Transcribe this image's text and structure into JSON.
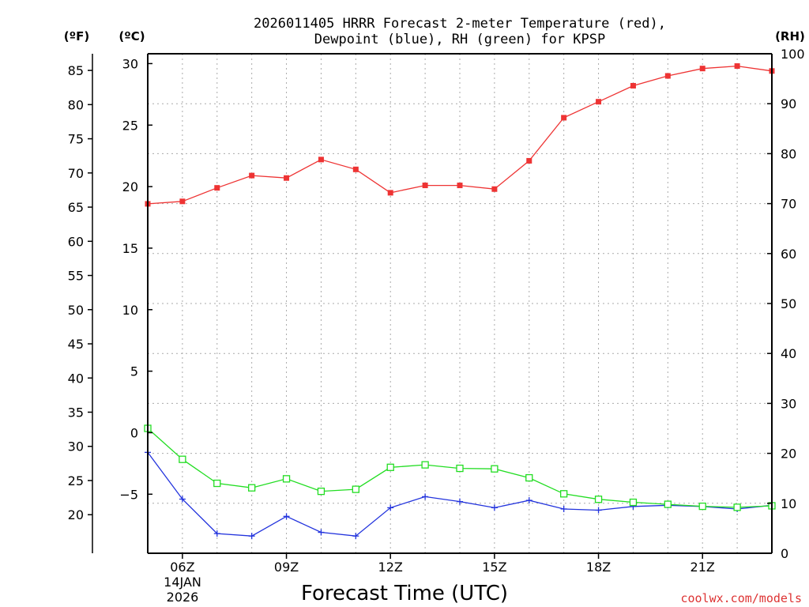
{
  "chart_data": {
    "type": "line",
    "title_line1": "2026011405 HRRR Forecast 2-meter Temperature (red),",
    "title_line2": "Dewpoint (blue), RH (green) for KPSP",
    "xlabel": "Forecast Time (UTC)",
    "left_outer_axis_label": "(ºF)",
    "left_inner_axis_label": "(ºC)",
    "right_axis_label": "(RH)",
    "x_hours": [
      5,
      6,
      7,
      8,
      9,
      10,
      11,
      12,
      13,
      14,
      15,
      16,
      17,
      18,
      19,
      20,
      21,
      22,
      23
    ],
    "x_ticks": [
      {
        "hour": 6,
        "label": "06Z"
      },
      {
        "hour": 9,
        "label": "09Z"
      },
      {
        "hour": 12,
        "label": "12Z"
      },
      {
        "hour": 15,
        "label": "15Z"
      },
      {
        "hour": 18,
        "label": "18Z"
      },
      {
        "hour": 21,
        "label": "21Z"
      }
    ],
    "date_label_line1": "14JAN",
    "date_label_line2": "2026",
    "xlim": [
      5,
      23
    ],
    "celsius_ylim": [
      -9.8,
      30.8
    ],
    "celsius_ticks": [
      30,
      25,
      20,
      15,
      10,
      5,
      0,
      -5
    ],
    "fahrenheit_ticks": [
      85,
      80,
      75,
      70,
      65,
      60,
      55,
      50,
      45,
      40,
      35,
      30,
      25,
      20
    ],
    "rh_ylim": [
      0,
      100
    ],
    "rh_ticks": [
      100,
      90,
      80,
      70,
      60,
      50,
      40,
      30,
      20,
      10,
      0
    ],
    "series": [
      {
        "name": "2-meter Temperature",
        "color": "#ee3333",
        "axis": "celsius",
        "marker": "filled-square",
        "values": [
          18.6,
          18.8,
          19.9,
          20.9,
          20.7,
          22.2,
          21.4,
          19.5,
          20.1,
          20.1,
          19.8,
          22.1,
          25.6,
          26.9,
          28.2,
          29.0,
          29.6,
          29.8,
          29.4
        ]
      },
      {
        "name": "Dewpoint",
        "color": "#2233dd",
        "axis": "celsius",
        "marker": "plus",
        "values": [
          -1.6,
          -5.4,
          -8.2,
          -8.4,
          -6.8,
          -8.1,
          -8.4,
          -6.1,
          -5.2,
          -5.6,
          -6.1,
          -5.5,
          -6.2,
          -6.3,
          -6.0,
          -5.9,
          -6.0,
          -6.2,
          -5.9
        ]
      },
      {
        "name": "RH",
        "color": "#22dd22",
        "axis": "rh",
        "marker": "open-square",
        "values": [
          25.0,
          18.8,
          14.0,
          13.1,
          14.9,
          12.4,
          12.8,
          17.2,
          17.7,
          17.0,
          16.9,
          15.1,
          11.9,
          10.8,
          10.2,
          9.8,
          9.4,
          9.2,
          9.5
        ]
      }
    ],
    "watermark": "coolwx.com/models"
  }
}
